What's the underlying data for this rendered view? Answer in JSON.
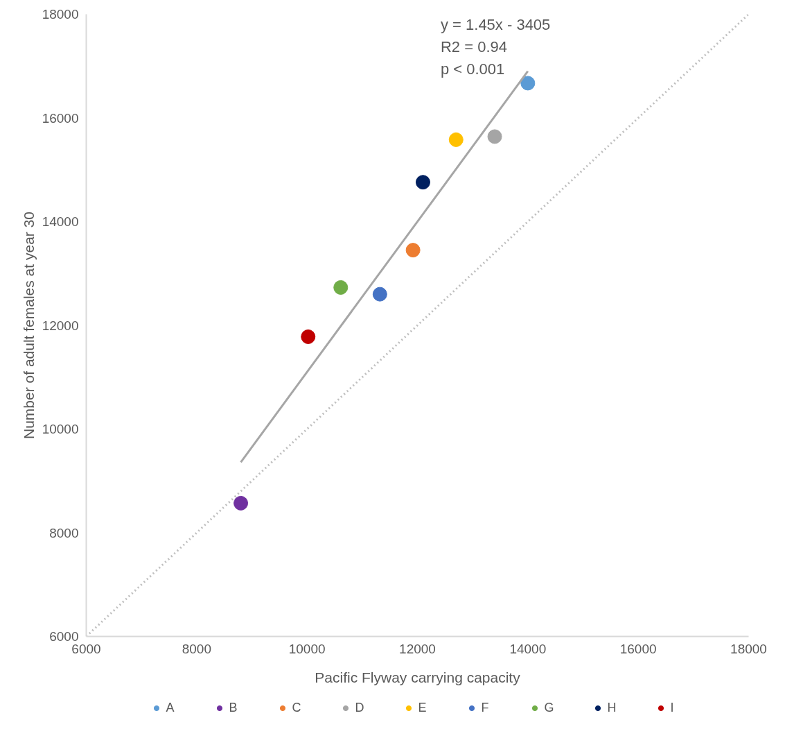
{
  "chart_data": {
    "type": "scatter",
    "xlabel": "Pacific Flyway carrying capacity",
    "ylabel": "Number of adult females at year 30",
    "annotations": [
      "y = 1.45x - 3405",
      "R2 = 0.94",
      "p < 0.001"
    ],
    "xlim": [
      6000,
      18000
    ],
    "xticks": [
      6000,
      8000,
      10000,
      12000,
      14000,
      16000,
      18000
    ],
    "ylim": [
      6000,
      18000
    ],
    "yticks": [
      6000,
      8000,
      10000,
      12000,
      14000,
      16000,
      18000
    ],
    "grid": false,
    "legend": "bottom",
    "marker": "circle",
    "series": [
      {
        "name": "A",
        "color": "#5b9bd5",
        "x": [
          14000
        ],
        "values": [
          16670
        ]
      },
      {
        "name": "B",
        "color": "#7030a0",
        "x": [
          8800
        ],
        "values": [
          8570
        ]
      },
      {
        "name": "C",
        "color": "#ed7d31",
        "x": [
          11920
        ],
        "values": [
          13450
        ]
      },
      {
        "name": "D",
        "color": "#a5a5a5",
        "x": [
          13400
        ],
        "values": [
          15640
        ]
      },
      {
        "name": "E",
        "color": "#ffc000",
        "x": [
          12700
        ],
        "values": [
          15580
        ]
      },
      {
        "name": "F",
        "color": "#4472c4",
        "x": [
          11320
        ],
        "values": [
          12600
        ]
      },
      {
        "name": "G",
        "color": "#70ad47",
        "x": [
          10610
        ],
        "values": [
          12730
        ]
      },
      {
        "name": "H",
        "color": "#002060",
        "x": [
          12100
        ],
        "values": [
          14760
        ]
      },
      {
        "name": "I",
        "color": "#c00000",
        "x": [
          10020
        ],
        "values": [
          11780
        ]
      },
      {
        "type": "line",
        "color": "#a6a6a6",
        "line_style": "solid",
        "marker": "none",
        "x": [
          8800,
          14000
        ],
        "values": [
          9360,
          16900
        ]
      },
      {
        "type": "line",
        "color": "#bfbfbf",
        "line_style": "dotted",
        "marker": "none",
        "x": [
          6000,
          18000
        ],
        "values": [
          6000,
          18000
        ]
      }
    ]
  }
}
